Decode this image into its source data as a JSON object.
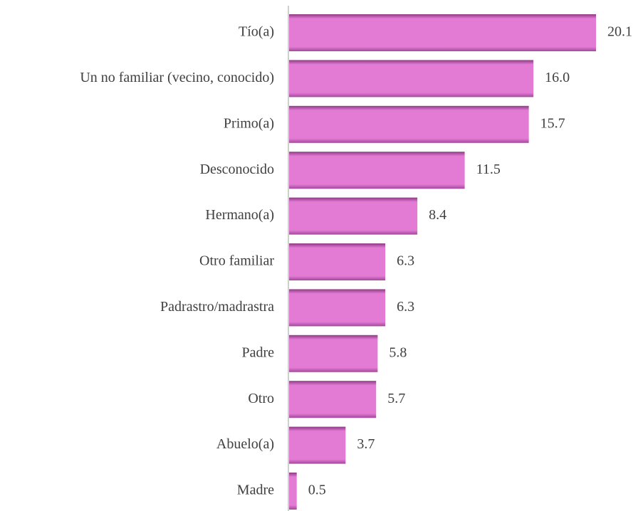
{
  "chart_data": {
    "type": "bar",
    "orientation": "horizontal",
    "color": "#e37bd5",
    "categories": [
      "Tío(a)",
      "Un no familiar (vecino, conocido)",
      "Primo(a)",
      "Desconocido",
      "Hermano(a)",
      "Otro familiar",
      "Padrastro/madrastra",
      "Padre",
      "Otro",
      "Abuelo(a)",
      "Madre"
    ],
    "values": [
      20.1,
      16.0,
      15.7,
      11.5,
      8.4,
      6.3,
      6.3,
      5.8,
      5.7,
      3.7,
      0.5
    ],
    "value_labels": [
      "20.1",
      "16.0",
      "15.7",
      "11.5",
      "8.4",
      "6.3",
      "6.3",
      "5.8",
      "5.7",
      "3.7",
      "0.5"
    ]
  }
}
